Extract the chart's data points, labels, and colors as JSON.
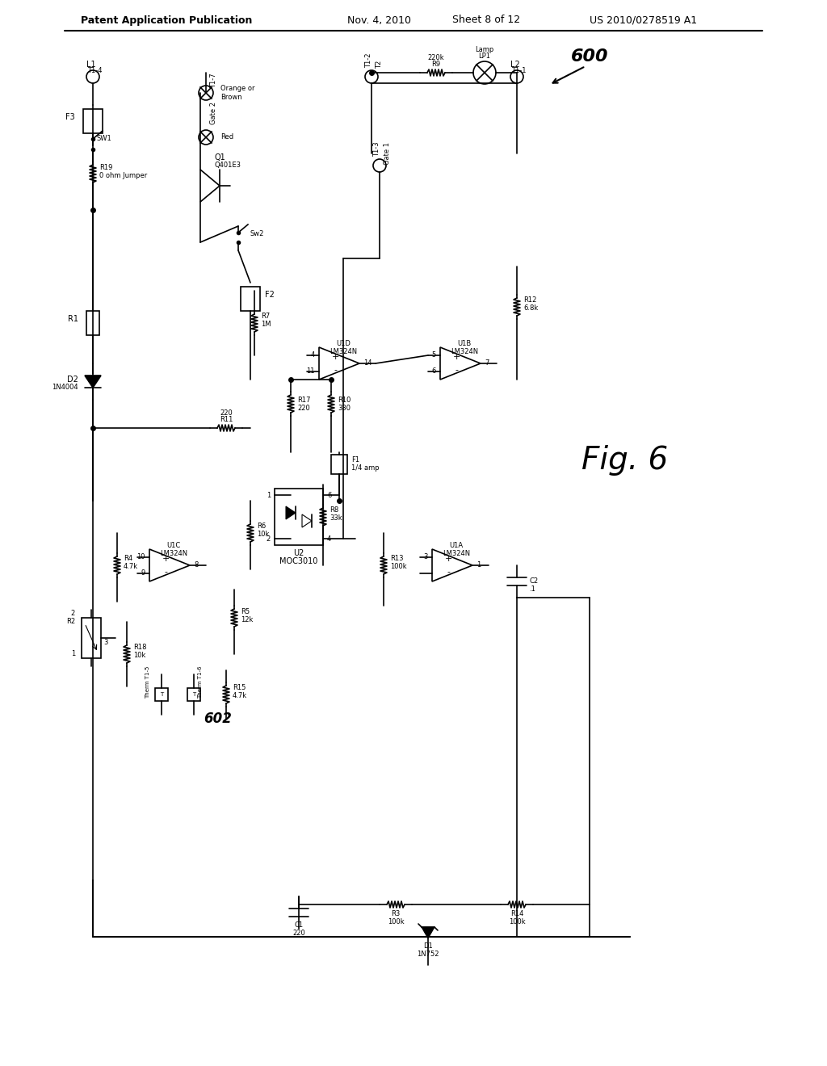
{
  "title": "Patent Application Publication",
  "date": "Nov. 4, 2010",
  "sheet": "Sheet 8 of 12",
  "patent_num": "US 2010/0278519 A1",
  "fig_label": "Fig. 6",
  "fig_number": "600",
  "background": "#ffffff",
  "line_color": "#000000",
  "text_color": "#000000",
  "fig_annotation": "602"
}
